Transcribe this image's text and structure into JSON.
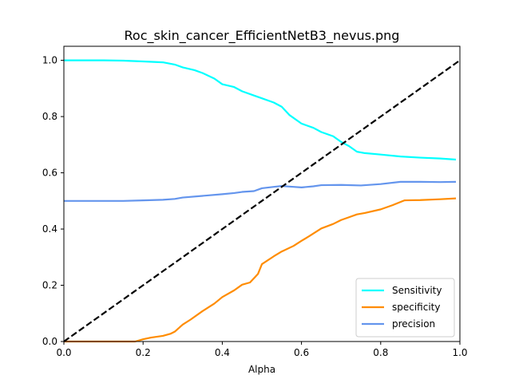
{
  "chart_data": {
    "type": "line",
    "title": "Roc_skin_cancer_EfficientNetB3_nevus.png",
    "xlabel": "Alpha",
    "ylabel": "",
    "xlim": [
      0,
      1
    ],
    "ylim": [
      0,
      1.05
    ],
    "xticks": [
      0.0,
      0.2,
      0.4,
      0.6,
      0.8,
      1.0
    ],
    "xtick_labels": [
      "0.0",
      "0.2",
      "0.4",
      "0.6",
      "0.8",
      "1.0"
    ],
    "yticks": [
      0.0,
      0.2,
      0.4,
      0.6,
      0.8,
      1.0
    ],
    "ytick_labels": [
      "0.0",
      "0.2",
      "0.4",
      "0.6",
      "0.8",
      "1.0"
    ],
    "grid": false,
    "legend_position": "lower-right",
    "series": [
      {
        "name": "Sensitivity",
        "color": "#00FFFF",
        "dash": false,
        "x": [
          0.0,
          0.05,
          0.1,
          0.15,
          0.2,
          0.25,
          0.28,
          0.3,
          0.33,
          0.35,
          0.38,
          0.4,
          0.43,
          0.45,
          0.48,
          0.5,
          0.53,
          0.55,
          0.57,
          0.6,
          0.63,
          0.65,
          0.68,
          0.7,
          0.72,
          0.74,
          0.76,
          0.8,
          0.85,
          0.9,
          0.95,
          0.99
        ],
        "values": [
          1.0,
          1.0,
          1.0,
          0.999,
          0.996,
          0.993,
          0.985,
          0.975,
          0.965,
          0.955,
          0.935,
          0.915,
          0.905,
          0.89,
          0.875,
          0.865,
          0.85,
          0.835,
          0.805,
          0.775,
          0.76,
          0.745,
          0.73,
          0.71,
          0.695,
          0.675,
          0.67,
          0.665,
          0.658,
          0.654,
          0.651,
          0.647
        ]
      },
      {
        "name": "specificity",
        "color": "#FF8C00",
        "dash": false,
        "x": [
          0.0,
          0.05,
          0.1,
          0.15,
          0.18,
          0.2,
          0.22,
          0.25,
          0.27,
          0.28,
          0.3,
          0.32,
          0.35,
          0.38,
          0.4,
          0.43,
          0.45,
          0.47,
          0.49,
          0.5,
          0.53,
          0.55,
          0.58,
          0.6,
          0.62,
          0.65,
          0.68,
          0.7,
          0.72,
          0.74,
          0.76,
          0.8,
          0.83,
          0.86,
          0.9,
          0.95,
          0.99
        ],
        "values": [
          0.0,
          0.0,
          0.0,
          0.0,
          0.0,
          0.008,
          0.014,
          0.02,
          0.028,
          0.035,
          0.06,
          0.078,
          0.108,
          0.135,
          0.158,
          0.182,
          0.202,
          0.21,
          0.24,
          0.275,
          0.303,
          0.32,
          0.34,
          0.358,
          0.375,
          0.402,
          0.418,
          0.432,
          0.442,
          0.452,
          0.457,
          0.47,
          0.485,
          0.502,
          0.503,
          0.506,
          0.509
        ]
      },
      {
        "name": "precision",
        "color": "#6495ED",
        "dash": false,
        "x": [
          0.0,
          0.05,
          0.1,
          0.15,
          0.2,
          0.25,
          0.28,
          0.3,
          0.35,
          0.4,
          0.43,
          0.45,
          0.48,
          0.5,
          0.53,
          0.55,
          0.58,
          0.6,
          0.63,
          0.65,
          0.7,
          0.75,
          0.8,
          0.85,
          0.9,
          0.95,
          0.99
        ],
        "values": [
          0.5,
          0.5,
          0.5,
          0.5,
          0.502,
          0.504,
          0.507,
          0.512,
          0.518,
          0.524,
          0.528,
          0.532,
          0.535,
          0.545,
          0.55,
          0.553,
          0.55,
          0.548,
          0.552,
          0.556,
          0.557,
          0.555,
          0.56,
          0.568,
          0.568,
          0.567,
          0.568
        ]
      },
      {
        "name": "",
        "color": "#000000",
        "dash": true,
        "x": [
          0.0,
          1.0
        ],
        "values": [
          0.0,
          1.0
        ]
      }
    ]
  }
}
